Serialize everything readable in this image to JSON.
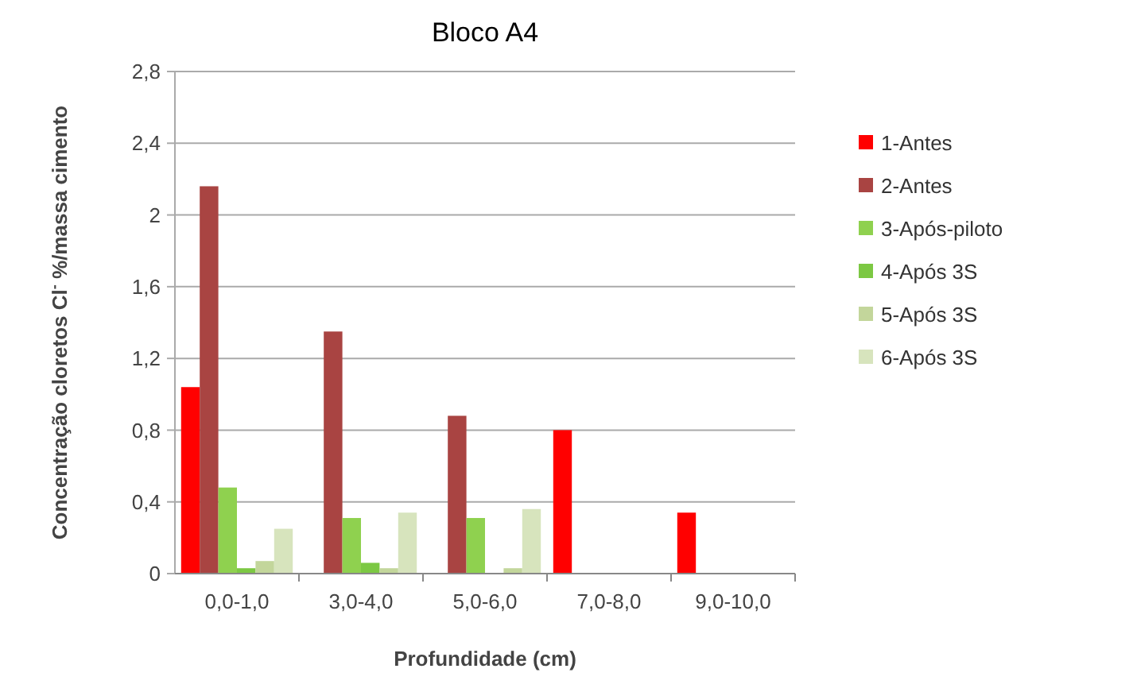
{
  "chart_data": {
    "type": "bar",
    "title": "Bloco A4",
    "xlabel": "Profundidade (cm)",
    "ylabel": "Concentração cloretos Cl$^{-}$ %/massa cimento",
    "categories": [
      "0,0-1,0",
      "3,0-4,0",
      "5,0-6,0",
      "7,0-8,0",
      "9,0-10,0"
    ],
    "series": [
      {
        "name": "1-Antes",
        "color": "#ff0000",
        "values": [
          1.04,
          null,
          null,
          0.8,
          0.34
        ]
      },
      {
        "name": "2-Antes",
        "color": "#a94442",
        "values": [
          2.16,
          1.35,
          0.88,
          null,
          null
        ]
      },
      {
        "name": "3-Após-piloto",
        "color": "#8fd14f",
        "values": [
          0.48,
          0.31,
          0.31,
          null,
          null
        ]
      },
      {
        "name": "4-Após 3S",
        "color": "#7cc843",
        "values": [
          0.03,
          0.06,
          null,
          null,
          null
        ]
      },
      {
        "name": "5-Após 3S",
        "color": "#c3d69b",
        "values": [
          0.07,
          0.03,
          0.03,
          null,
          null
        ]
      },
      {
        "name": "6-Após 3S",
        "color": "#d7e4bd",
        "values": [
          0.25,
          0.34,
          0.36,
          null,
          null
        ]
      }
    ],
    "ylim": [
      0,
      2.8
    ],
    "yticks": [
      {
        "value": 0,
        "label": "0"
      },
      {
        "value": 0.4,
        "label": "0,4"
      },
      {
        "value": 0.8,
        "label": "0,8"
      },
      {
        "value": 1.2,
        "label": "1,2"
      },
      {
        "value": 1.6,
        "label": "1,6"
      },
      {
        "value": 2,
        "label": "2"
      },
      {
        "value": 2.4,
        "label": "2,4"
      },
      {
        "value": 2.8,
        "label": "2,8"
      }
    ],
    "grid": "y",
    "legend": "right"
  }
}
